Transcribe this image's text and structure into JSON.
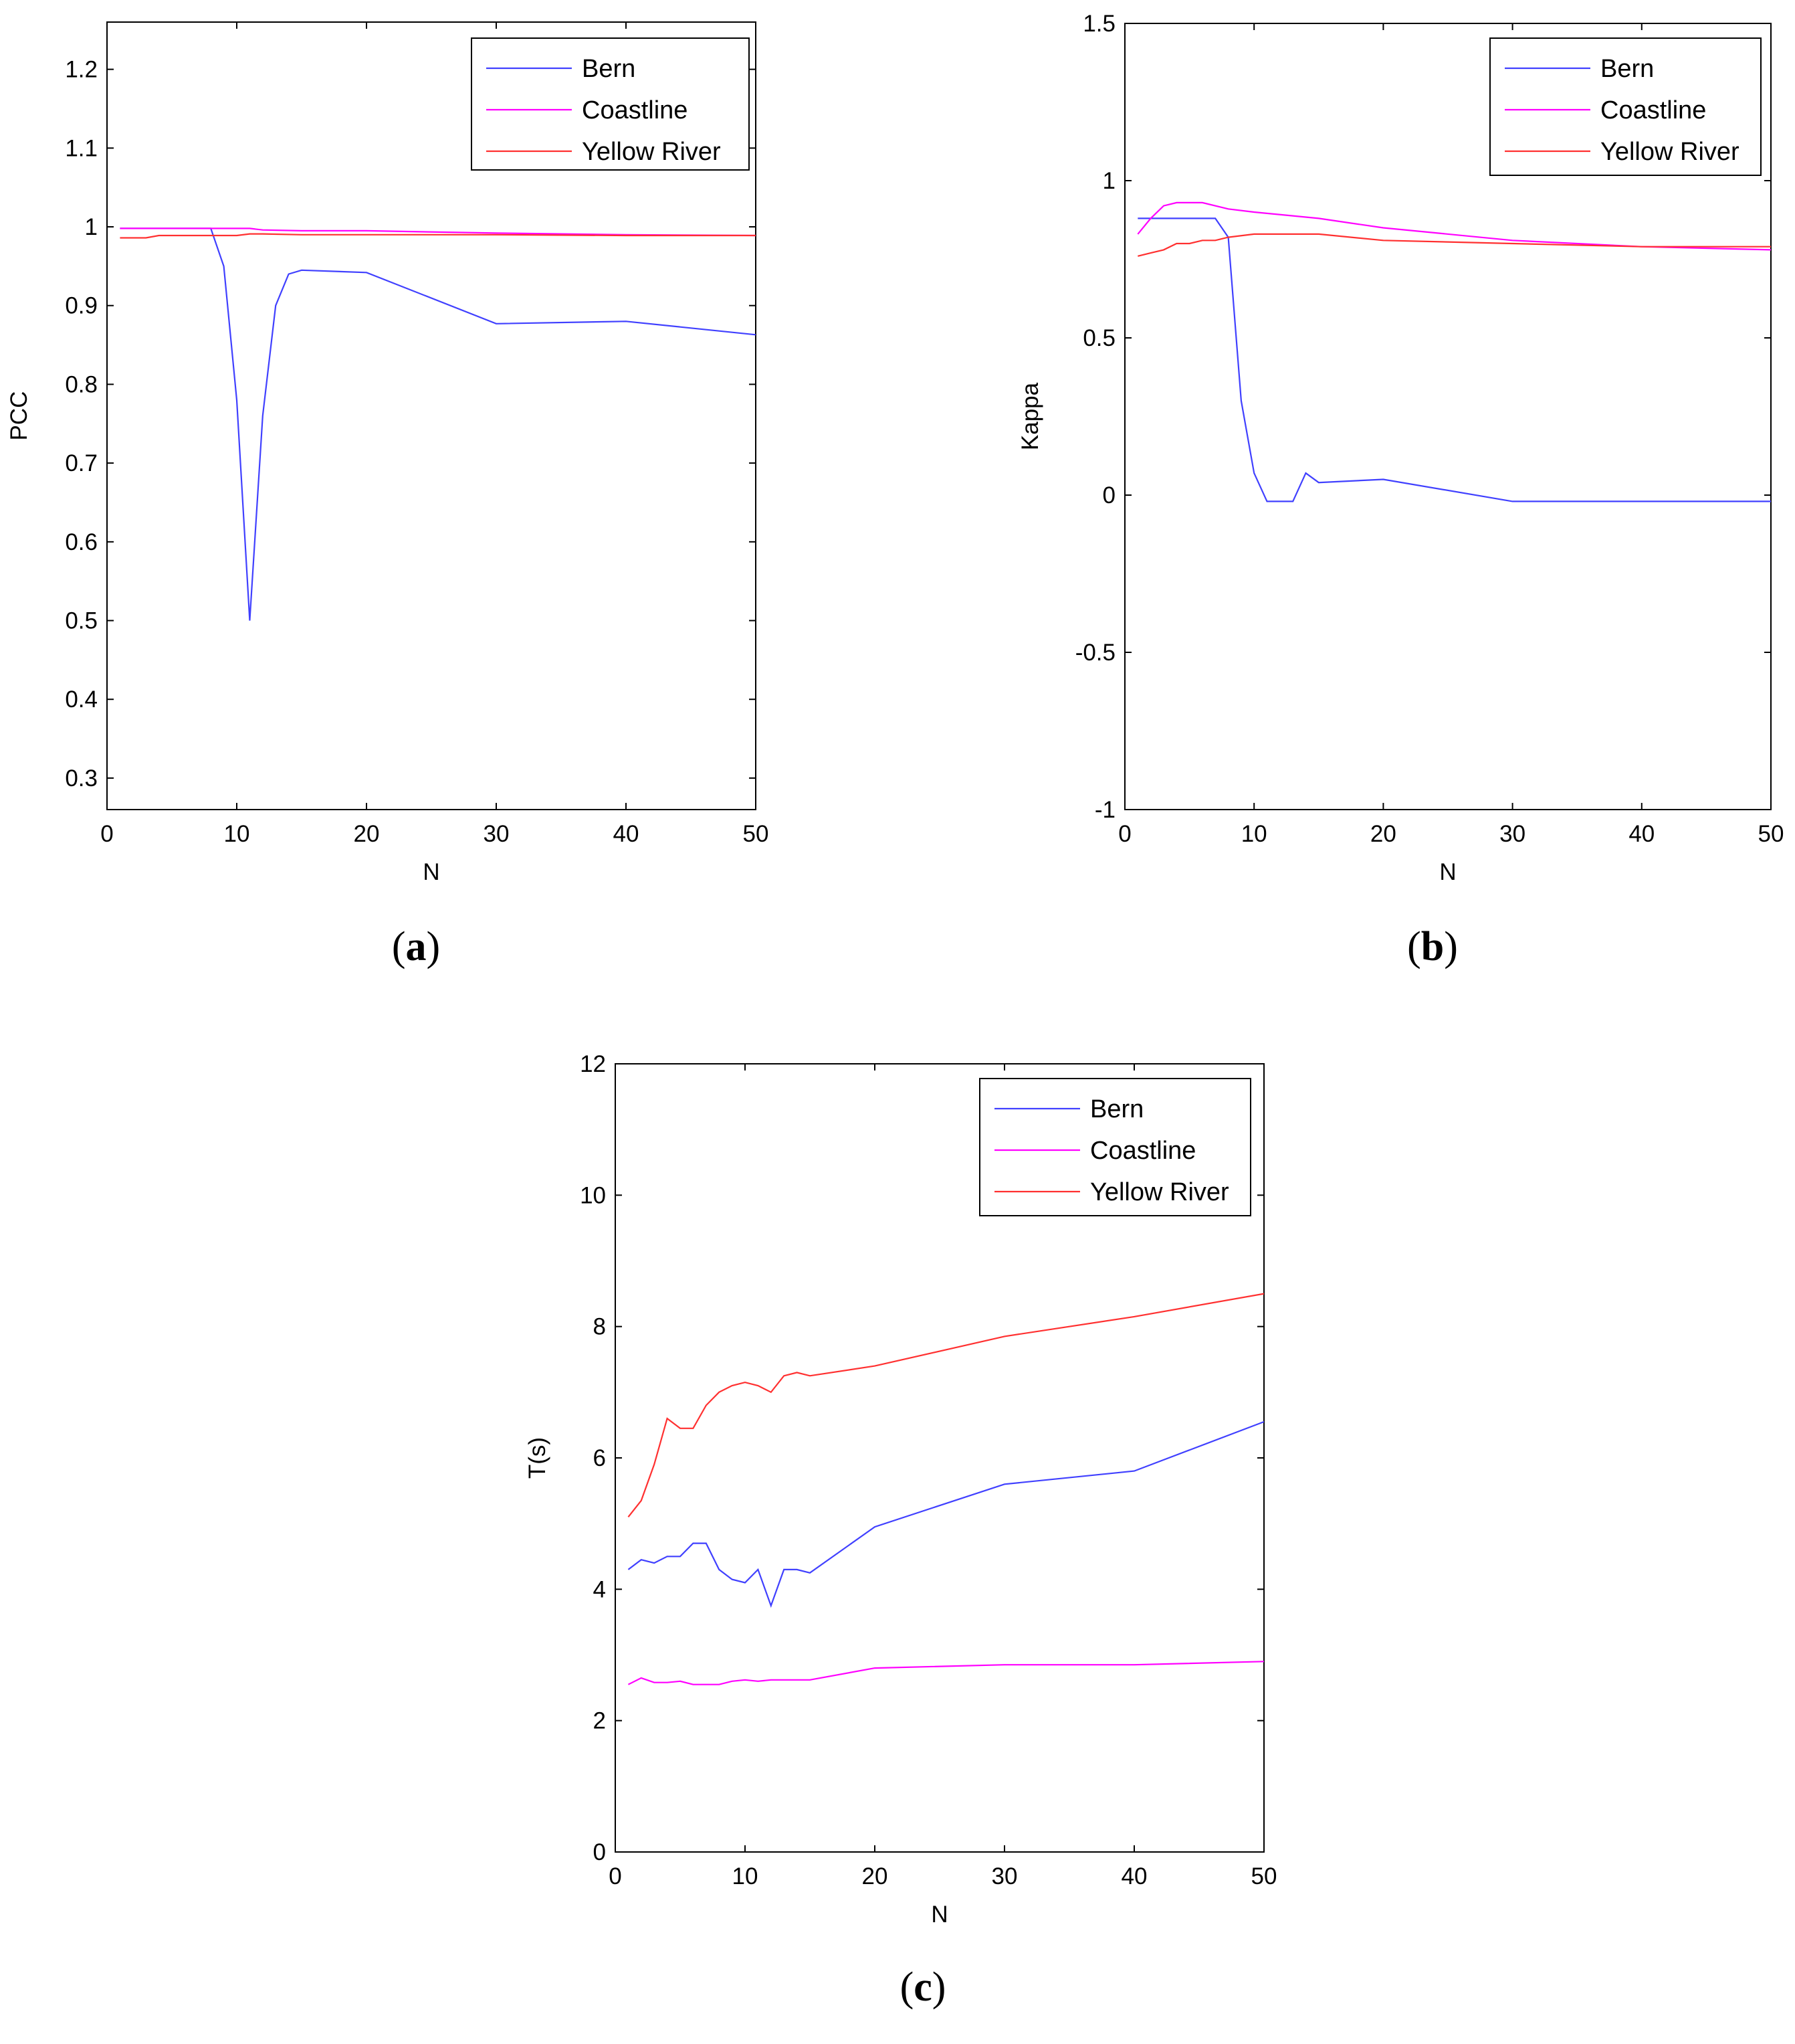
{
  "chart_data": [
    {
      "id": "a",
      "type": "line",
      "panel_label": "a",
      "xlabel": "N",
      "ylabel": "PCC",
      "xlim": [
        0,
        50
      ],
      "ylim": [
        0.26,
        1.26
      ],
      "xticks": [
        0,
        10,
        20,
        30,
        40,
        50
      ],
      "yticks": [
        0.3,
        0.4,
        0.5,
        0.6,
        0.7,
        0.8,
        0.9,
        1,
        1.1,
        1.2
      ],
      "legend_position": "top-right",
      "series": [
        {
          "name": "Bern",
          "color": "#4040ff",
          "x": [
            1,
            2,
            3,
            4,
            5,
            6,
            7,
            8,
            9,
            10,
            11,
            12,
            13,
            14,
            15,
            20,
            30,
            40,
            50
          ],
          "y": [
            0.998,
            0.998,
            0.998,
            0.998,
            0.998,
            0.998,
            0.998,
            0.998,
            0.95,
            0.78,
            0.5,
            0.76,
            0.9,
            0.94,
            0.945,
            0.942,
            0.877,
            0.88,
            0.863
          ]
        },
        {
          "name": "Coastline",
          "color": "#ff00ff",
          "x": [
            1,
            2,
            3,
            4,
            5,
            10,
            11,
            12,
            15,
            20,
            30,
            40,
            50
          ],
          "y": [
            0.998,
            0.998,
            0.998,
            0.998,
            0.998,
            0.998,
            0.998,
            0.996,
            0.995,
            0.995,
            0.992,
            0.99,
            0.989
          ]
        },
        {
          "name": "Yellow River",
          "color": "#ff3030",
          "x": [
            1,
            2,
            3,
            4,
            5,
            10,
            11,
            12,
            15,
            20,
            30,
            40,
            50
          ],
          "y": [
            0.986,
            0.986,
            0.986,
            0.989,
            0.989,
            0.989,
            0.991,
            0.991,
            0.99,
            0.99,
            0.99,
            0.989,
            0.989
          ]
        }
      ]
    },
    {
      "id": "b",
      "type": "line",
      "panel_label": "b",
      "xlabel": "N",
      "ylabel": "Kappa",
      "xlim": [
        0,
        50
      ],
      "ylim": [
        -1,
        1.5
      ],
      "xticks": [
        0,
        10,
        20,
        30,
        40,
        50
      ],
      "yticks": [
        -1,
        -0.5,
        0,
        0.5,
        1,
        1.5
      ],
      "legend_position": "top-right",
      "series": [
        {
          "name": "Bern",
          "color": "#4040ff",
          "x": [
            1,
            2,
            3,
            4,
            5,
            6,
            7,
            8,
            9,
            10,
            11,
            12,
            13,
            14,
            15,
            20,
            30,
            40,
            50
          ],
          "y": [
            0.88,
            0.88,
            0.88,
            0.88,
            0.88,
            0.88,
            0.88,
            0.82,
            0.3,
            0.07,
            -0.02,
            -0.02,
            -0.02,
            0.07,
            0.04,
            0.05,
            -0.02,
            -0.02,
            -0.02
          ]
        },
        {
          "name": "Coastline",
          "color": "#ff00ff",
          "x": [
            1,
            2,
            3,
            4,
            5,
            6,
            8,
            10,
            15,
            20,
            30,
            40,
            50
          ],
          "y": [
            0.83,
            0.88,
            0.92,
            0.93,
            0.93,
            0.93,
            0.91,
            0.9,
            0.88,
            0.85,
            0.81,
            0.79,
            0.78
          ]
        },
        {
          "name": "Yellow River",
          "color": "#ff3030",
          "x": [
            1,
            2,
            3,
            4,
            5,
            6,
            7,
            8,
            10,
            13,
            15,
            20,
            30,
            40,
            50
          ],
          "y": [
            0.76,
            0.77,
            0.78,
            0.8,
            0.8,
            0.81,
            0.81,
            0.82,
            0.83,
            0.83,
            0.83,
            0.81,
            0.8,
            0.79,
            0.79
          ]
        }
      ]
    },
    {
      "id": "c",
      "type": "line",
      "panel_label": "c",
      "xlabel": "N",
      "ylabel": "T(s)",
      "xlim": [
        0,
        50
      ],
      "ylim": [
        0,
        12
      ],
      "xticks": [
        0,
        10,
        20,
        30,
        40,
        50
      ],
      "yticks": [
        0,
        2,
        4,
        6,
        8,
        10,
        12
      ],
      "legend_position": "top-right",
      "series": [
        {
          "name": "Bern",
          "color": "#4040ff",
          "x": [
            1,
            2,
            3,
            4,
            5,
            6,
            7,
            8,
            9,
            10,
            11,
            12,
            13,
            14,
            15,
            20,
            30,
            40,
            50
          ],
          "y": [
            4.3,
            4.45,
            4.4,
            4.5,
            4.5,
            4.7,
            4.7,
            4.3,
            4.15,
            4.1,
            4.3,
            3.75,
            4.3,
            4.3,
            4.25,
            4.95,
            5.6,
            5.8,
            6.55
          ]
        },
        {
          "name": "Coastline",
          "color": "#ff00ff",
          "x": [
            1,
            2,
            3,
            4,
            5,
            6,
            7,
            8,
            9,
            10,
            11,
            12,
            13,
            14,
            15,
            20,
            30,
            40,
            50
          ],
          "y": [
            2.55,
            2.65,
            2.58,
            2.58,
            2.6,
            2.55,
            2.55,
            2.55,
            2.6,
            2.62,
            2.6,
            2.62,
            2.62,
            2.62,
            2.62,
            2.8,
            2.85,
            2.85,
            2.9
          ]
        },
        {
          "name": "Yellow River",
          "color": "#ff3030",
          "x": [
            1,
            2,
            3,
            4,
            5,
            6,
            7,
            8,
            9,
            10,
            11,
            12,
            13,
            14,
            15,
            20,
            30,
            40,
            50
          ],
          "y": [
            5.1,
            5.35,
            5.9,
            6.6,
            6.45,
            6.45,
            6.8,
            7.0,
            7.1,
            7.15,
            7.1,
            7.0,
            7.25,
            7.3,
            7.25,
            7.4,
            7.85,
            8.15,
            8.5
          ]
        }
      ]
    }
  ]
}
